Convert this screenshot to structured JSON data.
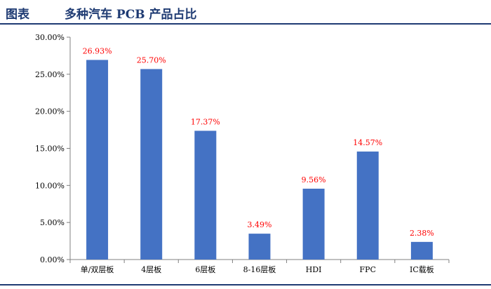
{
  "header": {
    "label": "图表",
    "title": "多种汽车 PCB 产品占比"
  },
  "colors": {
    "bar": "#4472c4",
    "data_label": "#ff0000",
    "axis": "#808080",
    "title": "#1f3b73"
  },
  "chart_data": {
    "type": "bar",
    "title": "多种汽车 PCB 产品占比",
    "categories": [
      "单/双层板",
      "4层板",
      "6层板",
      "8-16层板",
      "HDI",
      "FPC",
      "IC载板"
    ],
    "values": [
      26.93,
      25.7,
      17.37,
      3.49,
      9.56,
      14.57,
      2.38
    ],
    "data_labels": [
      "26.93%",
      "25.70%",
      "17.37%",
      "3.49%",
      "9.56%",
      "14.57%",
      "2.38%"
    ],
    "y_ticks": [
      0,
      5,
      10,
      15,
      20,
      25,
      30
    ],
    "y_tick_labels": [
      "0.00%",
      "5.00%",
      "10.00%",
      "15.00%",
      "20.00%",
      "25.00%",
      "30.00%"
    ],
    "ylim": [
      0,
      30
    ],
    "xlabel": "",
    "ylabel": "",
    "grid": false,
    "legend": "none"
  }
}
